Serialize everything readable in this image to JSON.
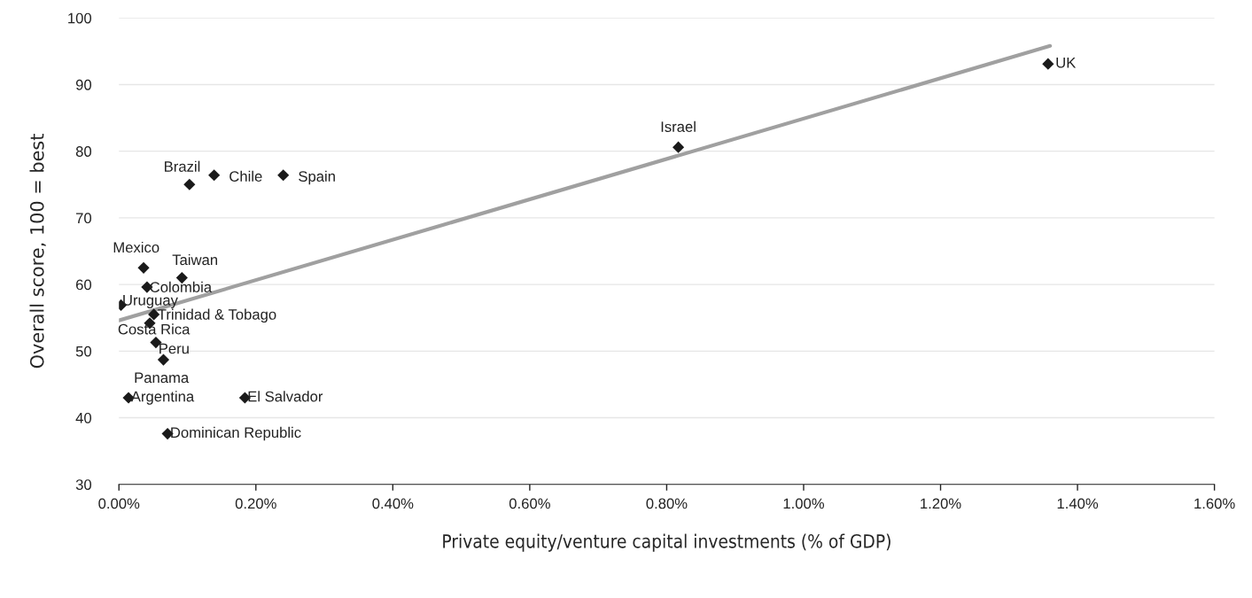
{
  "chart_data": {
    "type": "scatter",
    "xlabel": "Private equity/venture capital investments (% of GDP)",
    "ylabel": "Overall score, 100 = best",
    "xlim": [
      0,
      1.6
    ],
    "ylim": [
      30,
      100
    ],
    "xticks": [
      {
        "value": 0,
        "label": "0.00%"
      },
      {
        "value": 0.2,
        "label": "0.20%"
      },
      {
        "value": 0.4,
        "label": "0.40%"
      },
      {
        "value": 0.6,
        "label": "0.60%"
      },
      {
        "value": 0.8,
        "label": "0.80%"
      },
      {
        "value": 1.0,
        "label": "1.00%"
      },
      {
        "value": 1.2,
        "label": "1.20%"
      },
      {
        "value": 1.4,
        "label": "1.40%"
      },
      {
        "value": 1.6,
        "label": "1.60%"
      }
    ],
    "yticks": [
      30,
      40,
      50,
      60,
      70,
      80,
      90,
      100
    ],
    "grid": "y",
    "legend": false,
    "series": [
      {
        "marker": "diamond",
        "color": "#1a1a1a",
        "x": [
          1.357,
          0.817,
          0.103,
          0.139,
          0.24,
          0.036,
          0.092,
          0.041,
          0.003,
          0.051,
          0.045,
          0.054,
          0.065,
          0.014,
          0.184,
          0.071
        ],
        "values": [
          93.1,
          80.6,
          75.0,
          76.4,
          76.4,
          62.5,
          61.0,
          59.6,
          56.9,
          55.5,
          54.2,
          51.3,
          48.7,
          43.0,
          43.0,
          37.6
        ]
      },
      {
        "type": "line",
        "marker": "none",
        "color": "#a0a0a0",
        "x": [
          0,
          1.36
        ],
        "values": [
          54.6,
          95.8
        ]
      }
    ],
    "annotations": [
      {
        "text": "UK",
        "x": 1.357,
        "y": 93.1
      },
      {
        "text": "Israel",
        "x": 0.817,
        "y": 80.6
      },
      {
        "text": "Brazil",
        "x": 0.103,
        "y": 75.0
      },
      {
        "text": "Chile",
        "x": 0.139,
        "y": 76.4
      },
      {
        "text": "Spain",
        "x": 0.24,
        "y": 76.4
      },
      {
        "text": "Mexico",
        "x": 0.036,
        "y": 62.5
      },
      {
        "text": "Taiwan",
        "x": 0.092,
        "y": 61.0
      },
      {
        "text": "Colombia",
        "x": 0.041,
        "y": 59.6
      },
      {
        "text": "Uruguay",
        "x": 0.003,
        "y": 56.9
      },
      {
        "text": "Trinidad & Tobago",
        "x": 0.051,
        "y": 55.5
      },
      {
        "text": "Costa Rica",
        "x": 0.045,
        "y": 54.2
      },
      {
        "text": "Peru",
        "x": 0.054,
        "y": 51.3
      },
      {
        "text": "Panama",
        "x": 0.065,
        "y": 48.7
      },
      {
        "text": "Argentina",
        "x": 0.014,
        "y": 43.0
      },
      {
        "text": "El Salvador",
        "x": 0.184,
        "y": 43.0
      },
      {
        "text": "Dominican Republic",
        "x": 0.071,
        "y": 37.6
      }
    ]
  }
}
